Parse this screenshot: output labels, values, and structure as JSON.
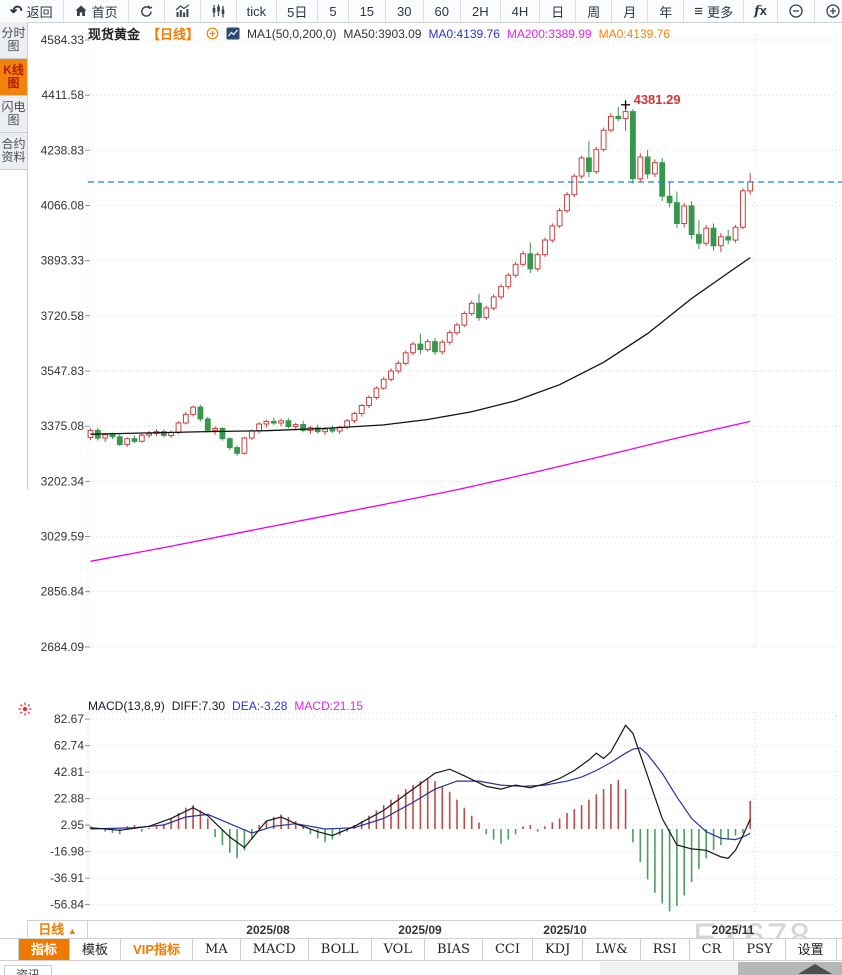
{
  "topbar": {
    "items": [
      {
        "name": "back",
        "icon": "back-arrow",
        "label": "返回"
      },
      {
        "name": "home",
        "icon": "home",
        "label": "首页"
      },
      {
        "name": "refresh",
        "icon": "refresh"
      },
      {
        "name": "line-chart",
        "icon": "trend-chart"
      },
      {
        "name": "candle-chart",
        "icon": "candles"
      },
      {
        "name": "tick",
        "label": "tick"
      },
      {
        "name": "5day",
        "label": "5日"
      },
      {
        "name": "5min",
        "label": "5",
        "narrow": true
      },
      {
        "name": "15min",
        "label": "15",
        "narrow": true
      },
      {
        "name": "30min",
        "label": "30",
        "narrow": true
      },
      {
        "name": "60min",
        "label": "60",
        "narrow": true
      },
      {
        "name": "2hour",
        "label": "2H",
        "narrow": true
      },
      {
        "name": "4hour",
        "label": "4H",
        "narrow": true
      },
      {
        "name": "day",
        "label": "日",
        "narrow": true
      },
      {
        "name": "week",
        "label": "周",
        "narrow": true
      },
      {
        "name": "month",
        "label": "月",
        "narrow": true
      },
      {
        "name": "year",
        "label": "年",
        "narrow": true
      },
      {
        "name": "more",
        "icon": "menu",
        "label": "更多"
      },
      {
        "name": "formula",
        "icon": "fx"
      },
      {
        "name": "zoom-out",
        "icon": "zoom-out"
      },
      {
        "name": "zoom-in",
        "icon": "zoom-in"
      }
    ]
  },
  "sidebar": {
    "items": [
      {
        "label": "分时图",
        "active": false
      },
      {
        "label": "K线图",
        "active": true
      },
      {
        "label": "闪电图",
        "active": false
      },
      {
        "label": "合约资料",
        "active": false
      }
    ]
  },
  "chart_header": {
    "symbol": "现货黄金",
    "period_tag": "【日线】",
    "ma_settings": "MA1(50,0,200,0)",
    "ma50": "MA50:3903.09",
    "ma0_blue": "MA0:4139.76",
    "ma200": "MA200:3389.99",
    "ma0_orange": "MA0:4139.76"
  },
  "macd_header": {
    "title": "MACD(13,8,9)",
    "diff": "DIFF:7.30",
    "dea": "DEA:-3.28",
    "macd": "MACD:21.15"
  },
  "xaxis": {
    "period_button": "日线",
    "arrow": "▲"
  },
  "indicator_bar": {
    "tabs": [
      {
        "label": "指标",
        "style": "active"
      },
      {
        "label": "模板",
        "style": ""
      },
      {
        "label": "VIP指标",
        "style": "vip"
      },
      {
        "label": "MA",
        "style": "latin"
      },
      {
        "label": "MACD",
        "style": "latin"
      },
      {
        "label": "BOLL",
        "style": "latin"
      },
      {
        "label": "VOL",
        "style": "latin"
      },
      {
        "label": "BIAS",
        "style": "latin"
      },
      {
        "label": "CCI",
        "style": "latin"
      },
      {
        "label": "KDJ",
        "style": "latin"
      },
      {
        "label": "LW&",
        "style": "latin"
      },
      {
        "label": "RSI",
        "style": "latin"
      },
      {
        "label": "CR",
        "style": "latin"
      },
      {
        "label": "PSY",
        "style": "latin"
      },
      {
        "label": "设置",
        "style": ""
      }
    ]
  },
  "bottom": {
    "partial_tab": "资讯"
  },
  "watermark": "FX678",
  "colors": {
    "accent_orange": "#f07c00",
    "candle_up": "#c9413f",
    "candle_down": "#35984d",
    "ma50": "#111111",
    "ma200": "#ee00ee",
    "price_line": "#1c7fe2",
    "diff_line": "#14141e",
    "dea_line": "#2336a0",
    "hist_pos": "#bf4a47",
    "hist_neg": "#4d9e63",
    "annotation_red": "#d03434"
  },
  "chart_data": [
    {
      "type": "candlestick",
      "title": "现货黄金 日线 (Spot Gold Daily)",
      "ylabel": "price",
      "grid": true,
      "y_ticks": [
        4584.33,
        4411.58,
        4238.83,
        4066.08,
        3893.33,
        3720.58,
        3547.83,
        3375.08,
        3202.34,
        3029.59,
        2856.84,
        2684.09
      ],
      "price_line": 4139.76,
      "high_annotation": {
        "value": 4381.29,
        "index": 73
      },
      "x_axis_labels": [
        {
          "label": "2025/08",
          "index": 24.2
        },
        {
          "label": "2025/09",
          "index": 45.0
        },
        {
          "label": "2025/10",
          "index": 64.7
        },
        {
          "label": "2025/11",
          "index": 87.7
        }
      ],
      "candles": [
        [
          3340,
          3368,
          3332,
          3362
        ],
        [
          3362,
          3370,
          3330,
          3338
        ],
        [
          3338,
          3352,
          3326,
          3348
        ],
        [
          3348,
          3355,
          3335,
          3342
        ],
        [
          3342,
          3350,
          3312,
          3318
        ],
        [
          3318,
          3340,
          3310,
          3336
        ],
        [
          3336,
          3346,
          3322,
          3328
        ],
        [
          3328,
          3352,
          3324,
          3347
        ],
        [
          3347,
          3360,
          3338,
          3352
        ],
        [
          3352,
          3366,
          3344,
          3358
        ],
        [
          3358,
          3365,
          3340,
          3346
        ],
        [
          3346,
          3362,
          3338,
          3355
        ],
        [
          3355,
          3390,
          3350,
          3385
        ],
        [
          3385,
          3420,
          3380,
          3412
        ],
        [
          3412,
          3440,
          3405,
          3435
        ],
        [
          3435,
          3442,
          3390,
          3398
        ],
        [
          3398,
          3405,
          3355,
          3362
        ],
        [
          3362,
          3375,
          3348,
          3368
        ],
        [
          3368,
          3372,
          3330,
          3336
        ],
        [
          3336,
          3340,
          3300,
          3308
        ],
        [
          3308,
          3315,
          3282,
          3290
        ],
        [
          3290,
          3342,
          3286,
          3338
        ],
        [
          3338,
          3365,
          3332,
          3360
        ],
        [
          3360,
          3388,
          3352,
          3382
        ],
        [
          3382,
          3395,
          3370,
          3390
        ],
        [
          3390,
          3402,
          3378,
          3385
        ],
        [
          3385,
          3398,
          3375,
          3392
        ],
        [
          3392,
          3400,
          3368,
          3374
        ],
        [
          3374,
          3386,
          3362,
          3380
        ],
        [
          3380,
          3392,
          3356,
          3362
        ],
        [
          3362,
          3376,
          3350,
          3370
        ],
        [
          3370,
          3380,
          3352,
          3358
        ],
        [
          3358,
          3372,
          3348,
          3366
        ],
        [
          3366,
          3378,
          3354,
          3360
        ],
        [
          3360,
          3376,
          3350,
          3372
        ],
        [
          3372,
          3398,
          3365,
          3392
        ],
        [
          3392,
          3420,
          3385,
          3415
        ],
        [
          3415,
          3445,
          3405,
          3440
        ],
        [
          3440,
          3472,
          3432,
          3465
        ],
        [
          3465,
          3500,
          3458,
          3494
        ],
        [
          3494,
          3530,
          3488,
          3522
        ],
        [
          3522,
          3556,
          3515,
          3548
        ],
        [
          3548,
          3580,
          3540,
          3572
        ],
        [
          3572,
          3612,
          3565,
          3605
        ],
        [
          3605,
          3640,
          3598,
          3632
        ],
        [
          3632,
          3665,
          3600,
          3615
        ],
        [
          3615,
          3648,
          3608,
          3640
        ],
        [
          3640,
          3652,
          3598,
          3608
        ],
        [
          3608,
          3645,
          3600,
          3638
        ],
        [
          3638,
          3676,
          3630,
          3668
        ],
        [
          3668,
          3700,
          3660,
          3692
        ],
        [
          3692,
          3735,
          3685,
          3728
        ],
        [
          3728,
          3768,
          3720,
          3760
        ],
        [
          3760,
          3790,
          3705,
          3715
        ],
        [
          3715,
          3752,
          3708,
          3745
        ],
        [
          3745,
          3788,
          3738,
          3780
        ],
        [
          3780,
          3820,
          3772,
          3812
        ],
        [
          3812,
          3855,
          3805,
          3848
        ],
        [
          3848,
          3890,
          3840,
          3882
        ],
        [
          3882,
          3925,
          3875,
          3915
        ],
        [
          3915,
          3950,
          3855,
          3868
        ],
        [
          3868,
          3920,
          3860,
          3912
        ],
        [
          3912,
          3965,
          3905,
          3958
        ],
        [
          3958,
          4010,
          3950,
          4002
        ],
        [
          4002,
          4058,
          3995,
          4050
        ],
        [
          4050,
          4108,
          4042,
          4100
        ],
        [
          4100,
          4165,
          4092,
          4158
        ],
        [
          4158,
          4222,
          4150,
          4215
        ],
        [
          4215,
          4268,
          4155,
          4172
        ],
        [
          4172,
          4250,
          4165,
          4242
        ],
        [
          4242,
          4310,
          4235,
          4302
        ],
        [
          4302,
          4355,
          4295,
          4345
        ],
        [
          4345,
          4375,
          4330,
          4338
        ],
        [
          4338,
          4381.29,
          4300,
          4360
        ],
        [
          4360,
          4368,
          4135,
          4150
        ],
        [
          4150,
          4230,
          4140,
          4218
        ],
        [
          4218,
          4240,
          4150,
          4165
        ],
        [
          4165,
          4210,
          4155,
          4200
        ],
        [
          4200,
          4215,
          4080,
          4095
        ],
        [
          4095,
          4140,
          4060,
          4075
        ],
        [
          4075,
          4110,
          3995,
          4010
        ],
        [
          4010,
          4075,
          3998,
          4065
        ],
        [
          4065,
          4080,
          3960,
          3975
        ],
        [
          3975,
          4020,
          3930,
          3948
        ],
        [
          3948,
          4005,
          3940,
          3995
        ],
        [
          3995,
          4010,
          3925,
          3940
        ],
        [
          3940,
          3980,
          3920,
          3968
        ],
        [
          3968,
          3990,
          3945,
          3958
        ],
        [
          3958,
          4005,
          3950,
          3998
        ],
        [
          3998,
          4120,
          3992,
          4112
        ],
        [
          4112,
          4168,
          4100,
          4139.76
        ]
      ],
      "series": [
        {
          "name": "MA50",
          "color": "#111111",
          "last": 3903.09,
          "points": [
            [
              0,
              3350
            ],
            [
              8,
              3354
            ],
            [
              16,
              3358
            ],
            [
              24,
              3361
            ],
            [
              32,
              3368
            ],
            [
              40,
              3379
            ],
            [
              46,
              3396
            ],
            [
              52,
              3420
            ],
            [
              58,
              3455
            ],
            [
              64,
              3505
            ],
            [
              70,
              3575
            ],
            [
              76,
              3665
            ],
            [
              82,
              3775
            ],
            [
              87,
              3855
            ],
            [
              90,
              3903.09
            ]
          ]
        },
        {
          "name": "MA200",
          "color": "#ee00ee",
          "last": 3389.99,
          "points": [
            [
              0,
              2952
            ],
            [
              10,
              2995
            ],
            [
              20,
              3040
            ],
            [
              30,
              3085
            ],
            [
              40,
              3130
            ],
            [
              50,
              3176
            ],
            [
              60,
              3228
            ],
            [
              70,
              3282
            ],
            [
              80,
              3338
            ],
            [
              90,
              3389.99
            ]
          ]
        }
      ]
    },
    {
      "type": "macd",
      "title": "MACD(13,8,9)",
      "y_ticks": [
        82.67,
        62.74,
        42.81,
        22.88,
        2.95,
        -16.98,
        -36.91,
        -56.84
      ],
      "diff_last": 7.3,
      "dea_last": -3.28,
      "macd_last": 21.15,
      "hist": [
        2,
        1,
        -2,
        -3,
        -4,
        2,
        3,
        -2,
        1,
        2,
        4,
        8,
        12,
        16,
        18,
        14,
        8,
        -6,
        -12,
        -18,
        -22,
        -16,
        -8,
        3,
        6,
        9,
        11,
        9,
        6,
        3,
        -4,
        -7,
        -10,
        -8,
        -5,
        -2,
        3,
        6,
        10,
        14,
        18,
        22,
        26,
        30,
        33,
        36,
        38,
        36,
        32,
        28,
        22,
        16,
        10,
        5,
        -4,
        -8,
        -11,
        -8,
        -4,
        2,
        3,
        -2,
        2,
        5,
        8,
        12,
        15,
        18,
        22,
        26,
        30,
        34,
        37,
        30,
        -10,
        -25,
        -38,
        -48,
        -56,
        -62,
        -58,
        -50,
        -40,
        -30,
        -22,
        -16,
        -12,
        -8,
        -5,
        -3,
        21.15
      ],
      "diff_points": [
        [
          0,
          1
        ],
        [
          4,
          -1
        ],
        [
          8,
          2
        ],
        [
          11,
          8
        ],
        [
          14,
          16
        ],
        [
          16,
          10
        ],
        [
          19,
          -6
        ],
        [
          21,
          -14
        ],
        [
          24,
          6
        ],
        [
          26,
          9
        ],
        [
          28,
          4
        ],
        [
          31,
          -2
        ],
        [
          33,
          -5
        ],
        [
          36,
          2
        ],
        [
          40,
          14
        ],
        [
          44,
          30
        ],
        [
          47,
          42
        ],
        [
          49,
          45
        ],
        [
          51,
          40
        ],
        [
          54,
          32
        ],
        [
          56,
          30
        ],
        [
          58,
          33
        ],
        [
          60,
          31
        ],
        [
          62,
          34
        ],
        [
          64,
          38
        ],
        [
          66,
          44
        ],
        [
          68,
          52
        ],
        [
          69,
          57
        ],
        [
          70,
          53
        ],
        [
          71,
          58
        ],
        [
          72,
          68
        ],
        [
          73,
          78
        ],
        [
          74,
          72
        ],
        [
          76,
          40
        ],
        [
          78,
          8
        ],
        [
          80,
          -12
        ],
        [
          82,
          -15
        ],
        [
          84,
          -16
        ],
        [
          86,
          -21
        ],
        [
          87,
          -22
        ],
        [
          88,
          -16
        ],
        [
          89,
          -5
        ],
        [
          90,
          7.3
        ]
      ],
      "dea_points": [
        [
          0,
          0
        ],
        [
          6,
          1
        ],
        [
          10,
          3
        ],
        [
          13,
          9
        ],
        [
          16,
          11
        ],
        [
          19,
          4
        ],
        [
          22,
          -3
        ],
        [
          25,
          2
        ],
        [
          28,
          4
        ],
        [
          32,
          0
        ],
        [
          36,
          1
        ],
        [
          40,
          8
        ],
        [
          44,
          20
        ],
        [
          47,
          30
        ],
        [
          50,
          36
        ],
        [
          53,
          36
        ],
        [
          56,
          33
        ],
        [
          59,
          32
        ],
        [
          62,
          33
        ],
        [
          65,
          36
        ],
        [
          67,
          39
        ],
        [
          69,
          44
        ],
        [
          71,
          50
        ],
        [
          73,
          57
        ],
        [
          74,
          60
        ],
        [
          75,
          61
        ],
        [
          76,
          56
        ],
        [
          78,
          42
        ],
        [
          80,
          24
        ],
        [
          82,
          8
        ],
        [
          84,
          -2
        ],
        [
          86,
          -7
        ],
        [
          88,
          -8
        ],
        [
          89,
          -6
        ],
        [
          90,
          -3.28
        ]
      ]
    }
  ]
}
